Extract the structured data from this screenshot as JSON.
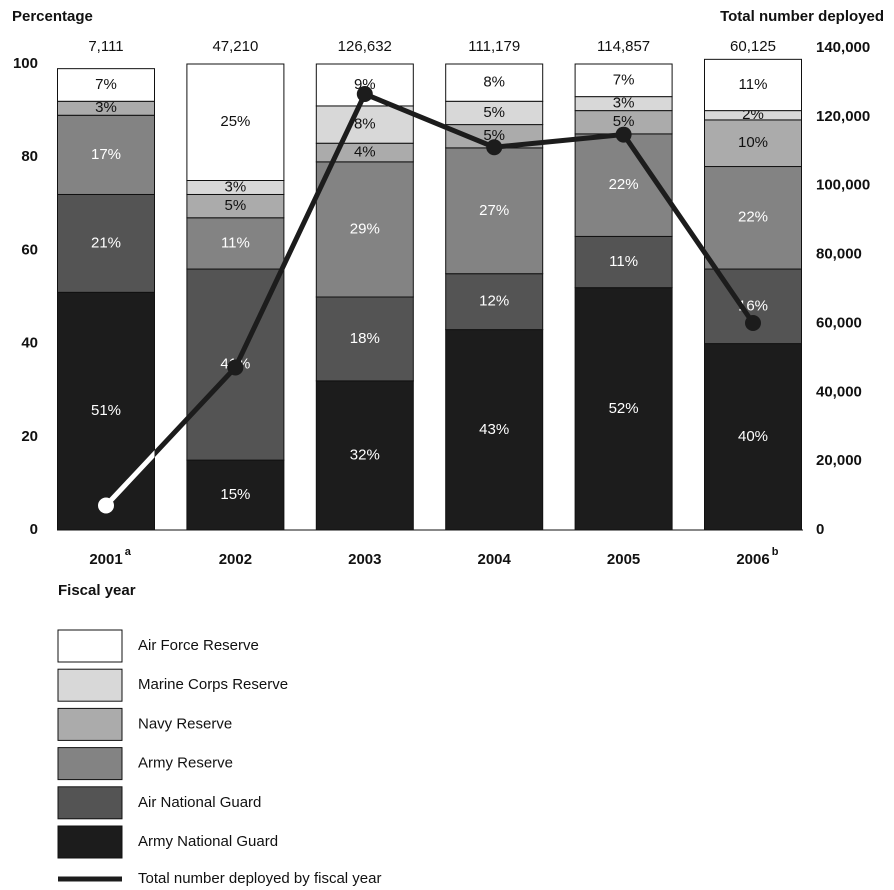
{
  "chart_data": {
    "type": "stacked-bar-line",
    "ylabel": "Percentage",
    "y2label": "Total number deployed",
    "xlabel": "Fiscal year",
    "categories": [
      "2001",
      "2002",
      "2003",
      "2004",
      "2005",
      "2006"
    ],
    "category_notes": [
      "a",
      null,
      null,
      null,
      null,
      "b"
    ],
    "ylim": [
      0,
      100
    ],
    "yticks": [
      0,
      20,
      40,
      60,
      80,
      100
    ],
    "y2lim": [
      0,
      140000
    ],
    "y2ticks": [
      0,
      {
        "value": 20000,
        "label": "20,000"
      },
      {
        "value": 40000,
        "label": "40,000"
      },
      {
        "value": 60000,
        "label": "60,000"
      },
      {
        "value": 80000,
        "label": "80,000"
      },
      {
        "value": 100000,
        "label": "100,000"
      },
      {
        "value": 120000,
        "label": "120,000"
      },
      {
        "value": 140000,
        "label": "140,000"
      }
    ],
    "series": [
      {
        "name": "Army National Guard",
        "color": "#1c1c1c",
        "values": [
          51,
          15,
          32,
          43,
          52,
          40
        ],
        "value_labels": [
          "51%",
          "15%",
          "32%",
          "43%",
          "52%",
          "40%"
        ]
      },
      {
        "name": "Air National Guard",
        "color": "#545454",
        "values": [
          21,
          41,
          18,
          12,
          11,
          16
        ],
        "value_labels": [
          "21%",
          "41%",
          "18%",
          "12%",
          "11%",
          "16%"
        ]
      },
      {
        "name": "Army Reserve",
        "color": "#838383",
        "values": [
          17,
          11,
          29,
          27,
          22,
          22
        ],
        "value_labels": [
          "17%",
          "11%",
          "29%",
          "27%",
          "22%",
          "22%"
        ]
      },
      {
        "name": "Navy Reserve",
        "color": "#ababab",
        "values": [
          3,
          5,
          4,
          5,
          5,
          10
        ],
        "value_labels": [
          "3%",
          "5%",
          "4%",
          "5%",
          "5%",
          "10%"
        ]
      },
      {
        "name": "Marine Corps Reserve",
        "color": "#d8d8d8",
        "values": [
          0,
          3,
          8,
          5,
          3,
          2
        ],
        "value_labels": [
          null,
          "3%",
          "8%",
          "5%",
          "3%",
          "2%"
        ]
      },
      {
        "name": "Air Force Reserve",
        "color": "#ffffff",
        "values": [
          7,
          25,
          9,
          8,
          7,
          11
        ],
        "value_labels": [
          "7%",
          "25%",
          "9%",
          "8%",
          "7%",
          "11%"
        ]
      },
      {
        "name": "Total number deployed by fiscal year",
        "color": "#1c1c1c",
        "axis": "y2",
        "type": "line",
        "values": [
          7111,
          47210,
          126632,
          111179,
          114857,
          60125
        ],
        "value_labels": [
          "7,111",
          "47,210",
          "126,632",
          "111,179",
          "114,857",
          "60,125"
        ]
      }
    ]
  }
}
